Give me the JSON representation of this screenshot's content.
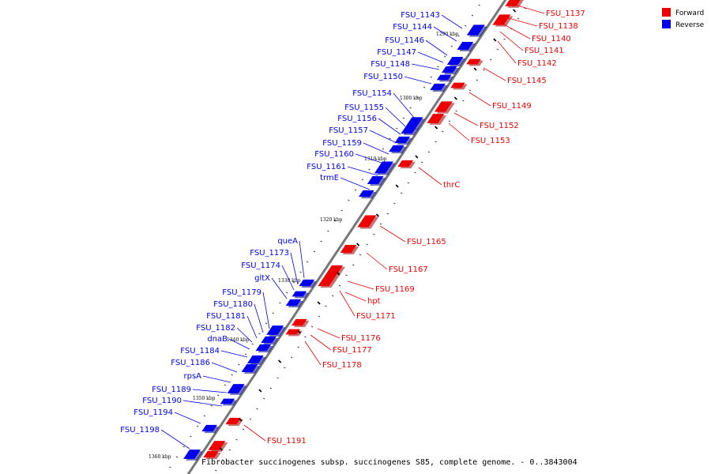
{
  "caption": "Fibrobacter succinogenes subsp. succinogenes S85, complete genome. - 0..3843004",
  "legend": [
    {
      "label": "Forward",
      "color": "#ee0000"
    },
    {
      "label": "Reverse",
      "color": "#0000ee"
    }
  ],
  "colors": {
    "forward": "#ee0000",
    "reverse": "#0000ee",
    "backbone": "#777777"
  },
  "scale_ticks": [
    "1290 kbp",
    "1300 kbp",
    "1310 kbp",
    "1320 kbp",
    "1330 kbp",
    "1340 kbp",
    "1350 kbp",
    "1360 kbp"
  ],
  "reverse_labels": [
    "FSU_1143",
    "FSU_1144",
    "FSU_1146",
    "FSU_1147",
    "FSU_1148",
    "FSU_1150",
    "FSU_1154",
    "FSU_1155",
    "FSU_1156",
    "FSU_1157",
    "FSU_1159",
    "FSU_1160",
    "FSU_1161",
    "trmE",
    "queA",
    "FSU_1173",
    "FSU_1174",
    "gltX",
    "FSU_1179",
    "FSU_1180",
    "FSU_1181",
    "FSU_1182",
    "dnaB",
    "FSU_1184",
    "FSU_1186",
    "rpsA",
    "FSU_1189",
    "FSU_1190",
    "FSU_1194",
    "FSU_1198"
  ],
  "forward_labels": [
    "FSU_1137",
    "FSU_1138",
    "FSU_1140",
    "FSU_1141",
    "FSU_1142",
    "FSU_1145",
    "FSU_1149",
    "FSU_1152",
    "FSU_1153",
    "thrC",
    "FSU_1165",
    "FSU_1167",
    "FSU_1169",
    "hpt",
    "FSU_1171",
    "FSU_1176",
    "FSU_1177",
    "FSU_1178",
    "FSU_1191"
  ]
}
